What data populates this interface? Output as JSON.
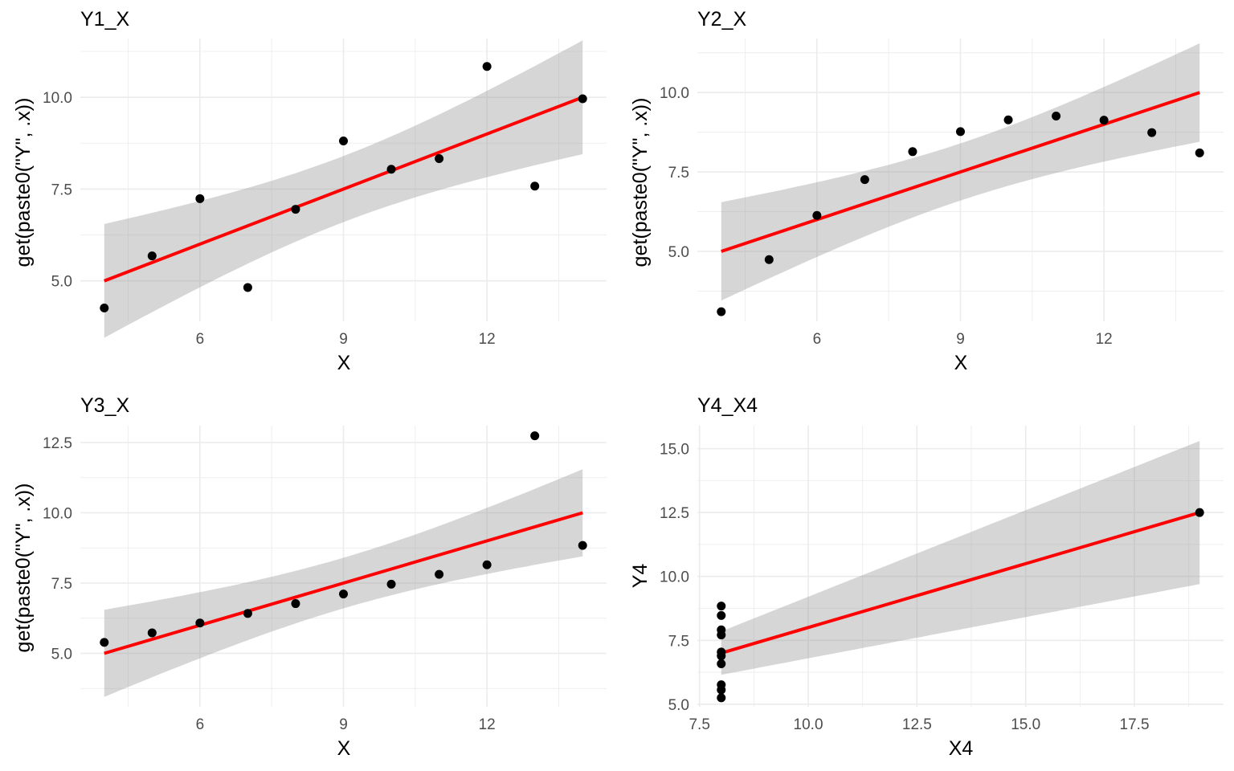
{
  "chart_data": [
    {
      "type": "scatter",
      "title": "Y1_X",
      "xlabel": "X",
      "ylabel": "get(paste0(\"Y\", .x))",
      "xlim": [
        3.5,
        14.5
      ],
      "ylim": [
        3.9,
        11.6
      ],
      "xticks": [
        6,
        9,
        12
      ],
      "yticks": [
        5.0,
        7.5,
        10.0
      ],
      "xtick_labels": [
        "6",
        "9",
        "12"
      ],
      "ytick_labels": [
        "5.0",
        "7.5",
        "10.0"
      ],
      "points": {
        "x": [
          4,
          5,
          6,
          7,
          8,
          9,
          10,
          11,
          12,
          13,
          14
        ],
        "y": [
          4.26,
          5.68,
          7.24,
          4.82,
          6.95,
          8.81,
          8.04,
          8.33,
          10.84,
          7.58,
          9.96
        ]
      },
      "fit": {
        "x": [
          4,
          14
        ],
        "y": [
          5.0,
          10.0
        ]
      },
      "confidence_band": {
        "x": [
          4,
          9,
          14
        ],
        "lower": [
          3.45,
          6.6,
          8.45
        ],
        "upper": [
          6.55,
          8.4,
          11.55
        ]
      },
      "grid": true,
      "colors": {
        "points": "#000000",
        "fit": "#ff0000",
        "band": "#d6d6d6"
      }
    },
    {
      "type": "scatter",
      "title": "Y2_X",
      "xlabel": "X",
      "ylabel": "get(paste0(\"Y\", .x))",
      "xlim": [
        3.5,
        14.5
      ],
      "ylim": [
        2.8,
        11.7
      ],
      "xticks": [
        6,
        9,
        12
      ],
      "yticks": [
        5.0,
        7.5,
        10.0
      ],
      "xtick_labels": [
        "6",
        "9",
        "12"
      ],
      "ytick_labels": [
        "5.0",
        "7.5",
        "10.0"
      ],
      "points": {
        "x": [
          4,
          5,
          6,
          7,
          8,
          9,
          10,
          11,
          12,
          13,
          14
        ],
        "y": [
          3.1,
          4.74,
          6.13,
          7.26,
          8.14,
          8.77,
          9.14,
          9.26,
          9.13,
          8.74,
          8.1
        ]
      },
      "fit": {
        "x": [
          4,
          14
        ],
        "y": [
          5.0,
          10.0
        ]
      },
      "confidence_band": {
        "x": [
          4,
          9,
          14
        ],
        "lower": [
          3.45,
          6.6,
          8.45
        ],
        "upper": [
          6.55,
          8.4,
          11.55
        ]
      },
      "grid": true,
      "colors": {
        "points": "#000000",
        "fit": "#ff0000",
        "band": "#d6d6d6"
      }
    },
    {
      "type": "scatter",
      "title": "Y3_X",
      "xlabel": "X",
      "ylabel": "get(paste0(\"Y\", .x))",
      "xlim": [
        3.5,
        14.5
      ],
      "ylim": [
        3.1,
        13.1
      ],
      "xticks": [
        6,
        9,
        12
      ],
      "yticks": [
        5.0,
        7.5,
        10.0,
        12.5
      ],
      "xtick_labels": [
        "6",
        "9",
        "12"
      ],
      "ytick_labels": [
        "5.0",
        "7.5",
        "10.0",
        "12.5"
      ],
      "points": {
        "x": [
          4,
          5,
          6,
          7,
          8,
          9,
          10,
          11,
          12,
          13,
          14
        ],
        "y": [
          5.39,
          5.73,
          6.08,
          6.42,
          6.77,
          7.11,
          7.46,
          7.81,
          8.15,
          12.74,
          8.84
        ]
      },
      "fit": {
        "x": [
          4,
          14
        ],
        "y": [
          5.0,
          10.0
        ]
      },
      "confidence_band": {
        "x": [
          4,
          9,
          14
        ],
        "lower": [
          3.45,
          6.6,
          8.45
        ],
        "upper": [
          6.55,
          8.4,
          11.55
        ]
      },
      "grid": true,
      "colors": {
        "points": "#000000",
        "fit": "#ff0000",
        "band": "#d6d6d6"
      }
    },
    {
      "type": "scatter",
      "title": "Y4_X4",
      "xlabel": "X4",
      "ylabel": "Y4",
      "xlim": [
        7.45,
        19.55
      ],
      "ylim": [
        4.9,
        15.9
      ],
      "xticks": [
        7.5,
        10.0,
        12.5,
        15.0,
        17.5
      ],
      "yticks": [
        5.0,
        7.5,
        10.0,
        12.5,
        15.0
      ],
      "xtick_labels": [
        "7.5",
        "10.0",
        "12.5",
        "15.0",
        "17.5"
      ],
      "ytick_labels": [
        "5.0",
        "7.5",
        "10.0",
        "12.5",
        "15.0"
      ],
      "points": {
        "x": [
          8,
          8,
          8,
          8,
          8,
          8,
          8,
          19,
          8,
          8,
          8
        ],
        "y": [
          6.58,
          5.76,
          7.71,
          8.84,
          8.47,
          7.04,
          5.25,
          12.5,
          5.56,
          7.91,
          6.89
        ]
      },
      "fit": {
        "x": [
          8,
          19
        ],
        "y": [
          7.0,
          12.5
        ]
      },
      "confidence_band": {
        "x": [
          8,
          19
        ],
        "lower": [
          6.15,
          9.7
        ],
        "upper": [
          7.85,
          15.3
        ]
      },
      "grid": true,
      "colors": {
        "points": "#000000",
        "fit": "#ff0000",
        "band": "#d6d6d6"
      }
    }
  ]
}
